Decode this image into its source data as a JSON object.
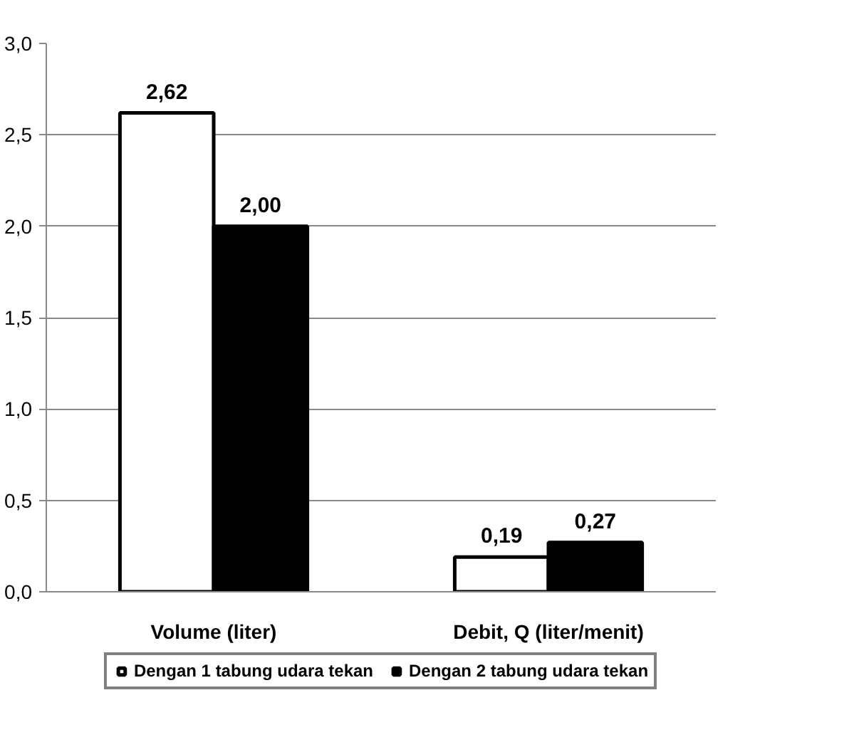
{
  "chart_data": {
    "type": "bar",
    "categories": [
      "Volume (liter)",
      "Debit, Q (liter/menit)"
    ],
    "series": [
      {
        "name": "Dengan 1 tabung udara tekan",
        "color": "#ffffff",
        "values": [
          2.62,
          0.19
        ],
        "value_labels": [
          "2,62",
          "0,19"
        ]
      },
      {
        "name": "Dengan 2 tabung udara tekan",
        "color": "#000000",
        "values": [
          2.0,
          0.27
        ],
        "value_labels": [
          "2,00",
          "0,27"
        ]
      }
    ],
    "ylim": [
      0,
      3
    ],
    "yticks": [
      {
        "value": 0,
        "label": "0,0"
      },
      {
        "value": 0.5,
        "label": "0,5"
      },
      {
        "value": 1,
        "label": "1,0"
      },
      {
        "value": 1.5,
        "label": "1,5"
      },
      {
        "value": 2,
        "label": "2,0"
      },
      {
        "value": 2.5,
        "label": "2,5"
      },
      {
        "value": 3,
        "label": "3,0"
      }
    ],
    "grid": "y",
    "legend": "bottom"
  }
}
